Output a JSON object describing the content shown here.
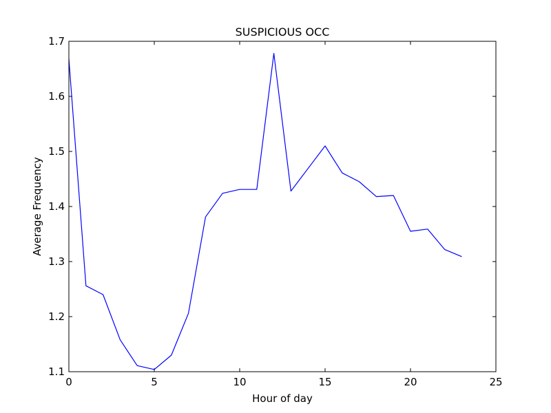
{
  "chart_data": {
    "type": "line",
    "title": "SUSPICIOUS OCC",
    "xlabel": "Hour of day",
    "ylabel": "Average Frequency",
    "xlim": [
      0,
      25
    ],
    "ylim": [
      1.1,
      1.7
    ],
    "xticks": [
      0,
      5,
      10,
      15,
      20,
      25
    ],
    "xtick_labels": [
      "0",
      "5",
      "10",
      "15",
      "20",
      "25"
    ],
    "yticks": [
      1.1,
      1.2,
      1.3,
      1.4,
      1.5,
      1.6,
      1.7
    ],
    "ytick_labels": [
      "1.1",
      "1.2",
      "1.3",
      "1.4",
      "1.5",
      "1.6",
      "1.7"
    ],
    "grid": false,
    "legend": "none",
    "series": [
      {
        "color": "#0000ff",
        "x": [
          0,
          1,
          2,
          3,
          4,
          5,
          6,
          7,
          8,
          9,
          10,
          11,
          12,
          13,
          14,
          15,
          16,
          17,
          18,
          19,
          20,
          21,
          22,
          23
        ],
        "values": [
          1.668,
          1.256,
          1.24,
          1.158,
          1.111,
          1.104,
          1.13,
          1.206,
          1.381,
          1.424,
          1.431,
          1.431,
          1.678,
          1.428,
          1.469,
          1.51,
          1.461,
          1.445,
          1.418,
          1.42,
          1.355,
          1.359,
          1.322,
          1.309
        ]
      }
    ]
  }
}
